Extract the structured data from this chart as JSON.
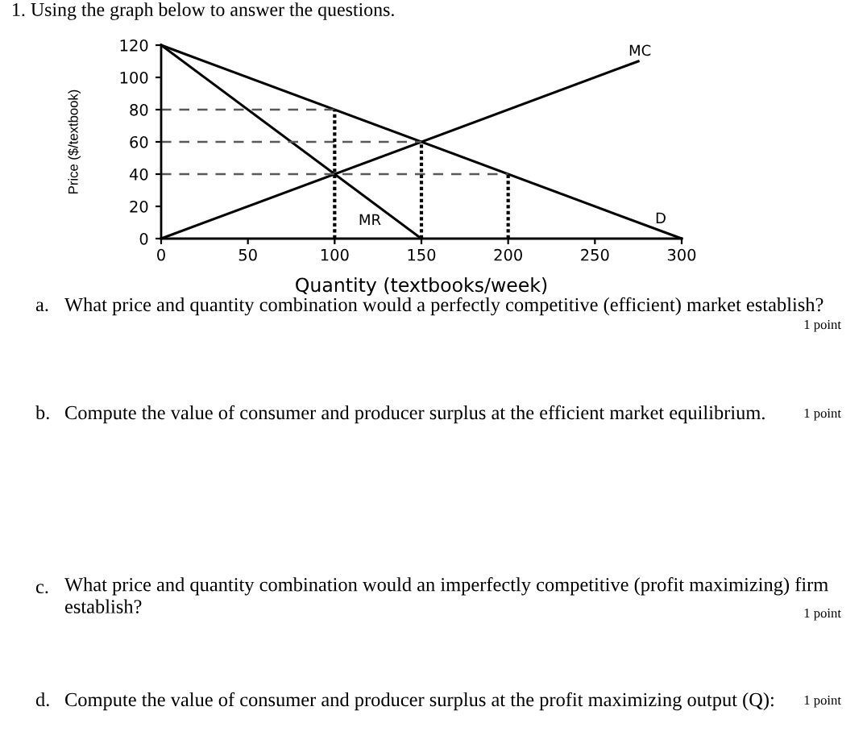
{
  "chart_data": {
    "type": "line",
    "title": "1. Using the graph below to answer the questions.",
    "xlabel": "Quantity (textbooks/week)",
    "ylabel": "Price ($/textbook)",
    "xlim": [
      0,
      300
    ],
    "ylim": [
      0,
      120
    ],
    "xticks": [
      0,
      50,
      100,
      150,
      200,
      250,
      300
    ],
    "yticks": [
      0,
      20,
      40,
      60,
      80,
      100,
      120
    ],
    "line_style": "solid",
    "series": [
      {
        "name": "MC",
        "x": [
          0,
          275
        ],
        "values": [
          0,
          110
        ],
        "color": "#000000"
      },
      {
        "name": "D",
        "x": [
          0,
          300
        ],
        "values": [
          120,
          0
        ],
        "color": "#000000"
      },
      {
        "name": "MR",
        "x": [
          0,
          150
        ],
        "values": [
          120,
          0
        ],
        "color": "#000000"
      },
      {
        "x": [
          0,
          100
        ],
        "values": [
          80,
          80
        ],
        "color": "#595959",
        "line_style": "dashed"
      },
      {
        "x": [
          0,
          150
        ],
        "values": [
          60,
          60
        ],
        "color": "#595959",
        "line_style": "dashed"
      },
      {
        "x": [
          0,
          200
        ],
        "values": [
          40,
          40
        ],
        "color": "#595959",
        "line_style": "dashed"
      },
      {
        "x": [
          100,
          100
        ],
        "values": [
          0,
          80
        ],
        "color": "#000000",
        "line_style": "dotted"
      },
      {
        "x": [
          150,
          150
        ],
        "values": [
          0,
          60
        ],
        "color": "#000000",
        "line_style": "dotted"
      },
      {
        "x": [
          200,
          200
        ],
        "values": [
          0,
          40
        ],
        "color": "#000000",
        "line_style": "dotted"
      }
    ],
    "annotations": [
      "a.",
      "What price and quantity combination would a perfectly competitive (efficient) market establish?",
      "1 point",
      "b.",
      "Compute the value of consumer and producer surplus at the efficient market equilibrium.",
      "1 point",
      "c.",
      "What price and quantity combination would an imperfectly competitive (profit maximizing) firm establish?",
      "1 point",
      "d.",
      "Compute the value of consumer and producer surplus at the profit maximizing output (Q):",
      "1 point"
    ]
  }
}
